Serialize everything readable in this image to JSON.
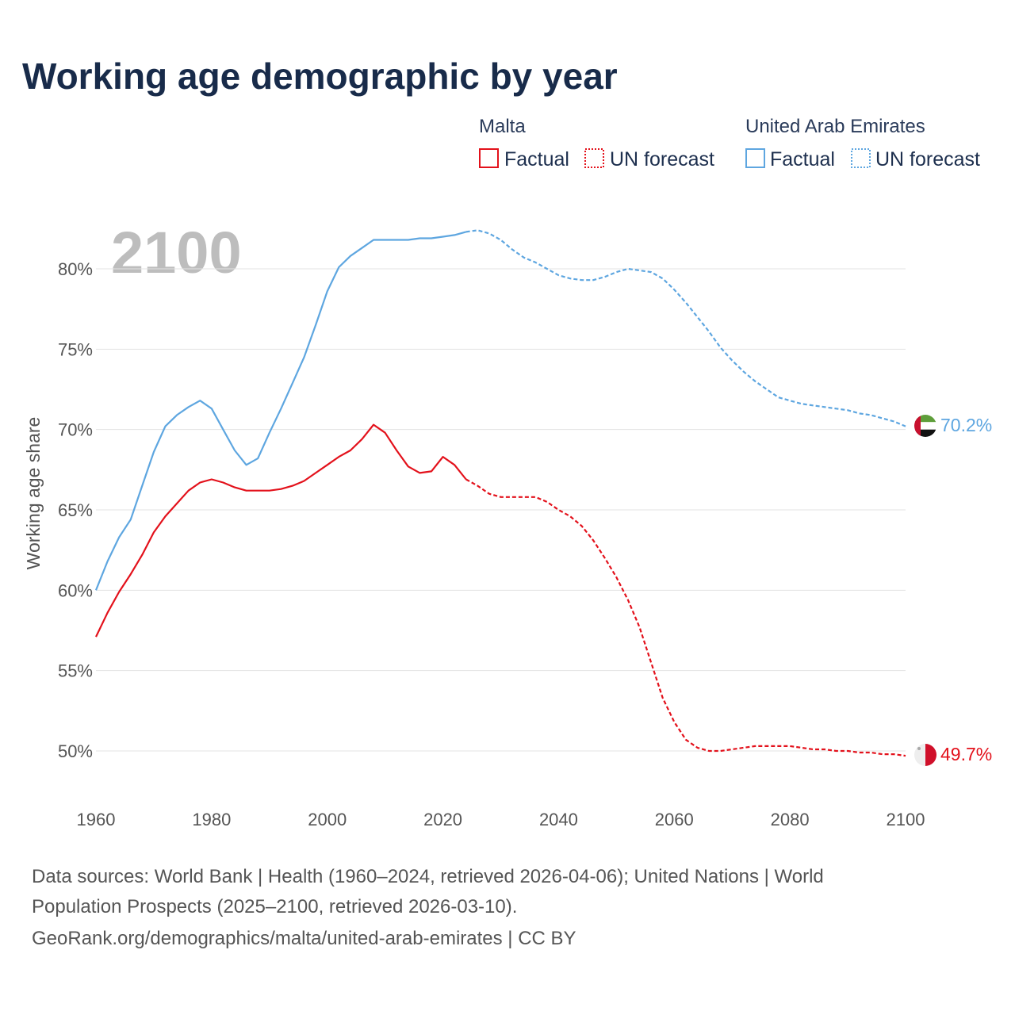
{
  "title": "Working age demographic by year",
  "year_overlay": "2100",
  "legend": {
    "groups": [
      {
        "name": "Malta",
        "color": "#e3111b",
        "factual_label": "Factual",
        "forecast_label": "UN forecast"
      },
      {
        "name": "United Arab Emirates",
        "color": "#5ea6e0",
        "factual_label": "Factual",
        "forecast_label": "UN forecast"
      }
    ]
  },
  "end_labels": {
    "malta": "49.7%",
    "uae": "70.2%"
  },
  "footer": {
    "line1": "Data sources: World Bank | Health (1960–2024, retrieved 2026-04-06); United Nations | World",
    "line2": "Population Prospects (2025–2100, retrieved 2026-03-10).",
    "line3": "GeoRank.org/demographics/malta/united-arab-emirates | CC BY"
  },
  "chart_data": {
    "type": "line",
    "title": "Working age demographic by year",
    "xlabel": "",
    "ylabel": "Working age share",
    "xlim": [
      1960,
      2100
    ],
    "ylim": [
      47.5,
      83.5
    ],
    "x_ticks": [
      1960,
      1980,
      2000,
      2020,
      2040,
      2060,
      2080,
      2100
    ],
    "x_tick_labels": [
      "1960",
      "1980",
      "2000",
      "2020",
      "2040",
      "2060",
      "2080",
      "2100"
    ],
    "y_ticks": [
      50,
      55,
      60,
      65,
      70,
      75,
      80
    ],
    "y_tick_labels": [
      "50%",
      "55%",
      "60%",
      "65%",
      "70%",
      "75%",
      "80%"
    ],
    "grid": true,
    "forecast_start": 2024,
    "series": [
      {
        "name": "Malta",
        "color": "#e3111b",
        "points": [
          [
            1960,
            57.1
          ],
          [
            1962,
            58.6
          ],
          [
            1964,
            59.9
          ],
          [
            1966,
            61.0
          ],
          [
            1968,
            62.2
          ],
          [
            1970,
            63.6
          ],
          [
            1972,
            64.6
          ],
          [
            1974,
            65.4
          ],
          [
            1976,
            66.2
          ],
          [
            1978,
            66.7
          ],
          [
            1980,
            66.9
          ],
          [
            1982,
            66.7
          ],
          [
            1984,
            66.4
          ],
          [
            1986,
            66.2
          ],
          [
            1988,
            66.2
          ],
          [
            1990,
            66.2
          ],
          [
            1992,
            66.3
          ],
          [
            1994,
            66.5
          ],
          [
            1996,
            66.8
          ],
          [
            1998,
            67.3
          ],
          [
            2000,
            67.8
          ],
          [
            2002,
            68.3
          ],
          [
            2004,
            68.7
          ],
          [
            2006,
            69.4
          ],
          [
            2008,
            70.3
          ],
          [
            2010,
            69.8
          ],
          [
            2012,
            68.7
          ],
          [
            2014,
            67.7
          ],
          [
            2016,
            67.3
          ],
          [
            2018,
            67.4
          ],
          [
            2020,
            68.3
          ],
          [
            2022,
            67.8
          ],
          [
            2024,
            66.9
          ],
          [
            2026,
            66.5
          ],
          [
            2028,
            66.0
          ],
          [
            2030,
            65.8
          ],
          [
            2032,
            65.8
          ],
          [
            2034,
            65.8
          ],
          [
            2036,
            65.8
          ],
          [
            2038,
            65.5
          ],
          [
            2040,
            65.0
          ],
          [
            2042,
            64.6
          ],
          [
            2044,
            64.0
          ],
          [
            2046,
            63.1
          ],
          [
            2048,
            62.0
          ],
          [
            2050,
            60.8
          ],
          [
            2052,
            59.4
          ],
          [
            2054,
            57.7
          ],
          [
            2056,
            55.5
          ],
          [
            2058,
            53.3
          ],
          [
            2060,
            51.8
          ],
          [
            2062,
            50.7
          ],
          [
            2064,
            50.2
          ],
          [
            2066,
            50.0
          ],
          [
            2068,
            50.0
          ],
          [
            2070,
            50.1
          ],
          [
            2072,
            50.2
          ],
          [
            2074,
            50.3
          ],
          [
            2076,
            50.3
          ],
          [
            2078,
            50.3
          ],
          [
            2080,
            50.3
          ],
          [
            2082,
            50.2
          ],
          [
            2084,
            50.1
          ],
          [
            2086,
            50.1
          ],
          [
            2088,
            50.0
          ],
          [
            2090,
            50.0
          ],
          [
            2092,
            49.9
          ],
          [
            2094,
            49.9
          ],
          [
            2096,
            49.8
          ],
          [
            2098,
            49.8
          ],
          [
            2100,
            49.7
          ]
        ]
      },
      {
        "name": "United Arab Emirates",
        "color": "#5ea6e0",
        "points": [
          [
            1960,
            60.0
          ],
          [
            1962,
            61.8
          ],
          [
            1964,
            63.3
          ],
          [
            1966,
            64.4
          ],
          [
            1968,
            66.5
          ],
          [
            1970,
            68.6
          ],
          [
            1972,
            70.2
          ],
          [
            1974,
            70.9
          ],
          [
            1976,
            71.4
          ],
          [
            1978,
            71.8
          ],
          [
            1980,
            71.3
          ],
          [
            1982,
            70.0
          ],
          [
            1984,
            68.7
          ],
          [
            1986,
            67.8
          ],
          [
            1988,
            68.2
          ],
          [
            1990,
            69.8
          ],
          [
            1992,
            71.3
          ],
          [
            1994,
            72.9
          ],
          [
            1996,
            74.5
          ],
          [
            1998,
            76.5
          ],
          [
            2000,
            78.6
          ],
          [
            2002,
            80.1
          ],
          [
            2004,
            80.8
          ],
          [
            2006,
            81.3
          ],
          [
            2008,
            81.8
          ],
          [
            2010,
            81.8
          ],
          [
            2012,
            81.8
          ],
          [
            2014,
            81.8
          ],
          [
            2016,
            81.9
          ],
          [
            2018,
            81.9
          ],
          [
            2020,
            82.0
          ],
          [
            2022,
            82.1
          ],
          [
            2024,
            82.3
          ],
          [
            2026,
            82.4
          ],
          [
            2028,
            82.2
          ],
          [
            2030,
            81.8
          ],
          [
            2032,
            81.2
          ],
          [
            2034,
            80.7
          ],
          [
            2036,
            80.4
          ],
          [
            2038,
            80.0
          ],
          [
            2040,
            79.6
          ],
          [
            2042,
            79.4
          ],
          [
            2044,
            79.3
          ],
          [
            2046,
            79.3
          ],
          [
            2048,
            79.5
          ],
          [
            2050,
            79.8
          ],
          [
            2052,
            80.0
          ],
          [
            2054,
            79.9
          ],
          [
            2056,
            79.8
          ],
          [
            2058,
            79.4
          ],
          [
            2060,
            78.7
          ],
          [
            2062,
            77.9
          ],
          [
            2064,
            77.0
          ],
          [
            2066,
            76.1
          ],
          [
            2068,
            75.1
          ],
          [
            2070,
            74.3
          ],
          [
            2072,
            73.6
          ],
          [
            2074,
            73.0
          ],
          [
            2076,
            72.5
          ],
          [
            2078,
            72.0
          ],
          [
            2080,
            71.8
          ],
          [
            2082,
            71.6
          ],
          [
            2084,
            71.5
          ],
          [
            2086,
            71.4
          ],
          [
            2088,
            71.3
          ],
          [
            2090,
            71.2
          ],
          [
            2092,
            71.0
          ],
          [
            2094,
            70.9
          ],
          [
            2096,
            70.7
          ],
          [
            2098,
            70.5
          ],
          [
            2100,
            70.2
          ]
        ]
      }
    ]
  }
}
